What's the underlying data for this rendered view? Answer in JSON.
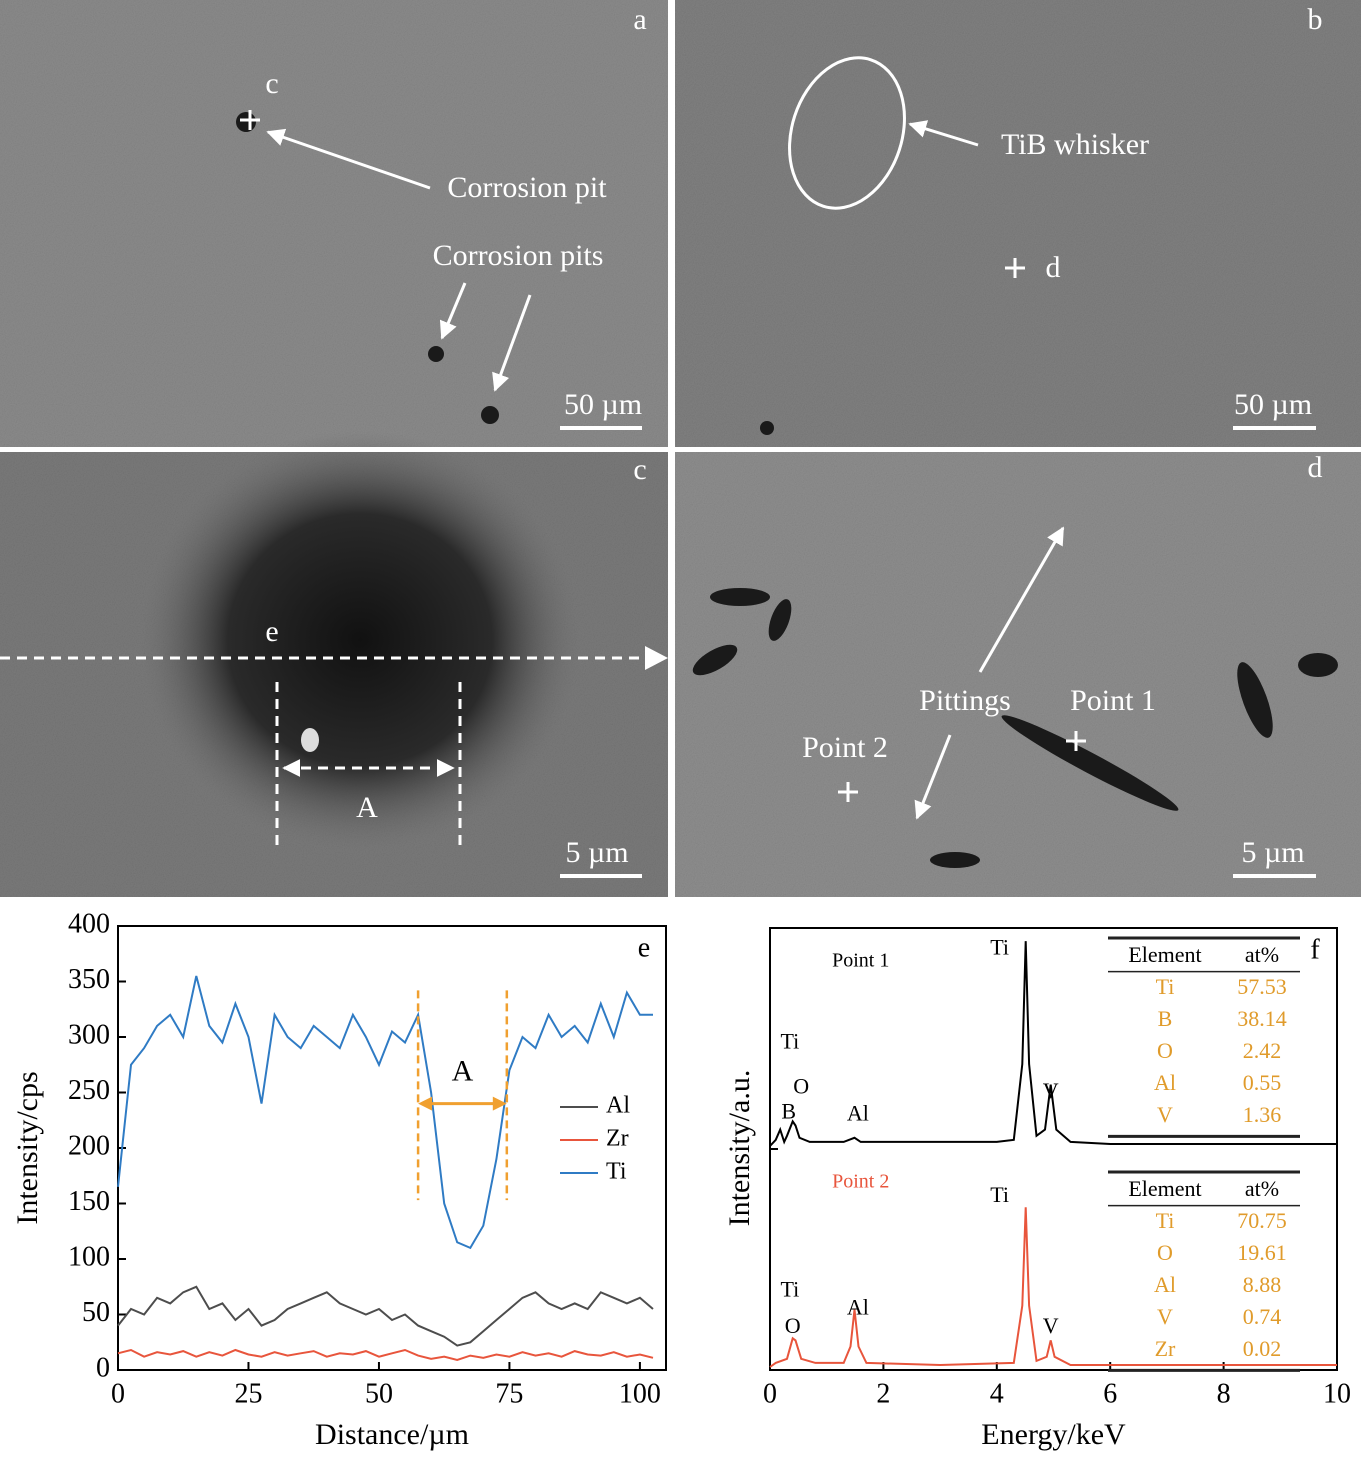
{
  "images": [
    {
      "label": "a",
      "scale_bar": "50 µm",
      "annotations": [
        "c",
        "Corrosion pit",
        "Corrosion pits"
      ]
    },
    {
      "label": "b",
      "scale_bar": "50 µm",
      "annotations": [
        "TiB whisker",
        "d"
      ]
    },
    {
      "label": "c",
      "scale_bar": "5 µm",
      "annotations": [
        "e",
        "A"
      ]
    },
    {
      "label": "d",
      "scale_bar": "5 µm",
      "annotations": [
        "Pittings",
        "Point 1",
        "Point 2"
      ]
    }
  ],
  "chart_data": [
    {
      "type": "line",
      "panel_label": "e",
      "x_label": "Distance/µm",
      "y_label": "Intensity/cps",
      "xlim": [
        0,
        105
      ],
      "ylim": [
        0,
        400
      ],
      "xticks": [
        0,
        25,
        50,
        75,
        100
      ],
      "yticks": [
        0,
        50,
        100,
        150,
        200,
        250,
        300,
        350,
        400
      ],
      "legend": "right",
      "region": {
        "label": "A",
        "x": [
          57.5,
          74.5
        ]
      },
      "x": [
        0,
        2.5,
        5,
        7.5,
        10,
        12.5,
        15,
        17.5,
        20,
        22.5,
        25,
        27.5,
        30,
        32.5,
        35,
        37.5,
        40,
        42.5,
        45,
        47.5,
        50,
        52.5,
        55,
        57.5,
        60,
        62.5,
        65,
        67.5,
        70,
        72.5,
        75,
        77.5,
        80,
        82.5,
        85,
        87.5,
        90,
        92.5,
        95,
        97.5,
        100,
        102.5
      ],
      "series": [
        {
          "name": "Al",
          "color": "#4d4d4d",
          "values": [
            40,
            55,
            50,
            65,
            60,
            70,
            75,
            55,
            60,
            45,
            55,
            40,
            45,
            55,
            60,
            65,
            70,
            60,
            55,
            50,
            55,
            45,
            50,
            40,
            35,
            30,
            22,
            25,
            35,
            45,
            55,
            65,
            70,
            60,
            55,
            60,
            55,
            70,
            65,
            60,
            65,
            55
          ]
        },
        {
          "name": "Zr",
          "color": "#e8553c",
          "values": [
            15,
            18,
            12,
            16,
            14,
            17,
            12,
            16,
            13,
            18,
            14,
            12,
            16,
            13,
            15,
            17,
            12,
            15,
            14,
            17,
            12,
            15,
            18,
            13,
            10,
            12,
            9,
            13,
            11,
            14,
            12,
            16,
            13,
            15,
            12,
            17,
            14,
            13,
            16,
            12,
            14,
            11
          ]
        },
        {
          "name": "Ti",
          "color": "#2f7bc4",
          "values": [
            165,
            275,
            290,
            310,
            320,
            300,
            355,
            310,
            295,
            330,
            300,
            240,
            320,
            300,
            290,
            310,
            300,
            290,
            320,
            300,
            275,
            305,
            295,
            320,
            250,
            150,
            115,
            110,
            130,
            190,
            270,
            300,
            290,
            320,
            300,
            310,
            295,
            330,
            300,
            340,
            320,
            320
          ]
        }
      ]
    },
    {
      "type": "line",
      "panel_label": "f",
      "x_label": "Energy/keV",
      "y_label": "Intensity/a.u.",
      "xlim": [
        0,
        10
      ],
      "ylim": [
        0,
        105
      ],
      "xticks": [
        0,
        2,
        4,
        6,
        8,
        10
      ],
      "stacked": true,
      "series": [
        {
          "name": "Point 1",
          "color": "#000000",
          "x": [
            0,
            0.1,
            0.18,
            0.25,
            0.3,
            0.4,
            0.45,
            0.52,
            0.7,
            1,
            1.3,
            1.49,
            1.6,
            2,
            3,
            4,
            4.3,
            4.45,
            4.51,
            4.57,
            4.7,
            4.85,
            4.95,
            5.05,
            5.3,
            6,
            8,
            10
          ],
          "values": [
            0,
            3,
            8,
            2,
            5,
            12,
            10,
            4,
            2,
            2,
            2,
            4,
            2,
            2,
            2,
            2,
            3,
            40,
            100,
            40,
            5,
            8,
            30,
            8,
            2,
            1,
            1,
            1
          ],
          "annotations": [
            {
              "text": "Ti",
              "x": 0.35,
              "y": 50
            },
            {
              "text": "O",
              "x": 0.55,
              "y": 28
            },
            {
              "text": "B",
              "x": 0.33,
              "y": 16
            },
            {
              "text": "Al",
              "x": 1.55,
              "y": 15
            },
            {
              "text": "Ti",
              "x": 4.05,
              "y": 96
            },
            {
              "text": "V",
              "x": 4.95,
              "y": 26
            }
          ],
          "table": {
            "columns": [
              "Element",
              "at%"
            ],
            "rows": [
              [
                "Ti",
                57.53
              ],
              [
                "B",
                38.14
              ],
              [
                "O",
                2.42
              ],
              [
                "Al",
                0.55
              ],
              [
                "V",
                1.36
              ]
            ]
          }
        },
        {
          "name": "Point 2",
          "color": "#e8553c",
          "x": [
            0,
            0.1,
            0.3,
            0.4,
            0.45,
            0.55,
            0.8,
            1.3,
            1.42,
            1.49,
            1.56,
            1.7,
            3,
            4.3,
            4.45,
            4.51,
            4.57,
            4.7,
            4.88,
            4.95,
            5.02,
            5.3,
            10
          ],
          "values": [
            0,
            2,
            4,
            14,
            13,
            4,
            2,
            2,
            10,
            28,
            10,
            2,
            1,
            2,
            30,
            78,
            30,
            3,
            5,
            13,
            5,
            1,
            1
          ],
          "annotations": [
            {
              "text": "Ti",
              "x": 0.35,
              "y": 37
            },
            {
              "text": "O",
              "x": 0.4,
              "y": 19
            },
            {
              "text": "Al",
              "x": 1.55,
              "y": 28
            },
            {
              "text": "Ti",
              "x": 4.05,
              "y": 83
            },
            {
              "text": "V",
              "x": 4.95,
              "y": 19
            }
          ],
          "table": {
            "columns": [
              "Element",
              "at%"
            ],
            "rows": [
              [
                "Ti",
                70.75
              ],
              [
                "O",
                19.61
              ],
              [
                "Al",
                8.88
              ],
              [
                "V",
                0.74
              ],
              [
                "Zr",
                0.02
              ]
            ]
          }
        }
      ]
    }
  ]
}
